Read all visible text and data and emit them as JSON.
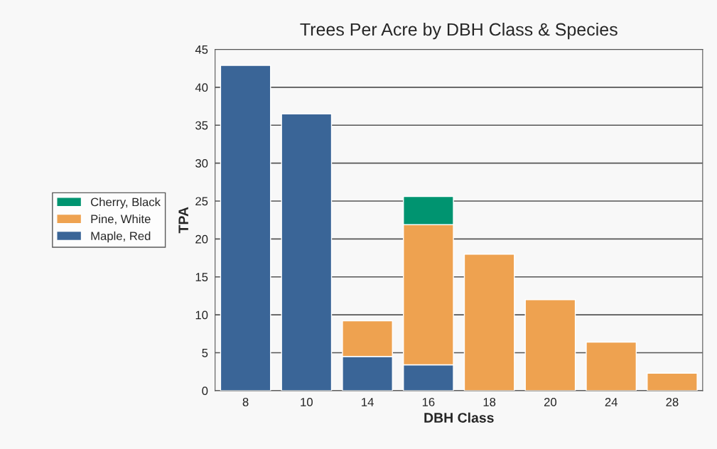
{
  "chart_data": {
    "type": "bar",
    "title": "Trees Per Acre by DBH Class & Species",
    "xlabel": "DBH Class",
    "ylabel": "TPA",
    "categories": [
      "8",
      "10",
      "14",
      "16",
      "18",
      "20",
      "24",
      "28"
    ],
    "stacked": true,
    "series": [
      {
        "name": "Maple, Red",
        "color": "#3a6597",
        "values": [
          42.9,
          36.5,
          4.5,
          3.4,
          null,
          null,
          null,
          null
        ]
      },
      {
        "name": "Pine, White",
        "color": "#eea250",
        "values": [
          null,
          null,
          4.7,
          18.5,
          18.0,
          12.0,
          6.4,
          2.3
        ]
      },
      {
        "name": "Cherry, Black",
        "color": "#009470",
        "values": [
          null,
          null,
          null,
          3.7,
          null,
          null,
          null,
          null
        ]
      }
    ],
    "ylim": [
      0,
      45
    ],
    "yticks": [
      0,
      5,
      10,
      15,
      20,
      25,
      30,
      35,
      40,
      45
    ],
    "grid": "y",
    "legend": "left"
  }
}
